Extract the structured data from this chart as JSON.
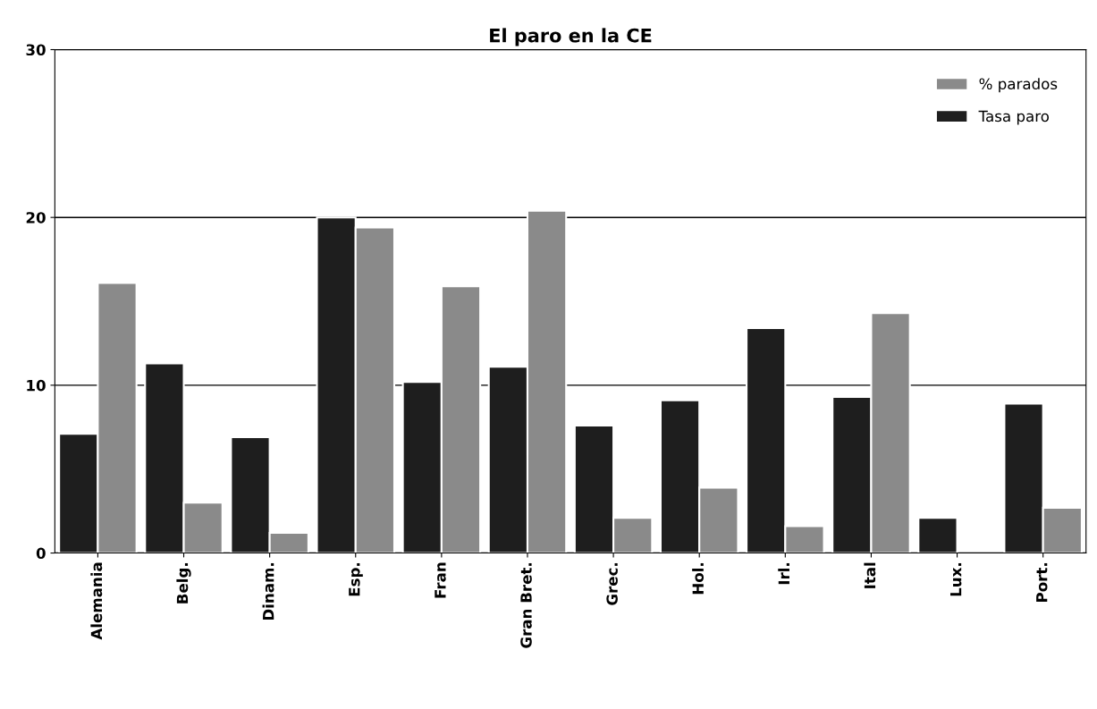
{
  "chart_data": {
    "type": "bar",
    "title": "El paro en la CE",
    "categories": [
      "Alemania",
      "Belg.",
      "Dinam.",
      "Esp.",
      "Fran",
      "Gran Bret.",
      "Grec.",
      "Hol.",
      "Irl.",
      "Ital",
      "Lux.",
      "Port."
    ],
    "series": [
      {
        "name": "Tasa paro",
        "color": "#1e1e1e",
        "values": [
          7.1,
          11.3,
          6.9,
          20.0,
          10.2,
          11.1,
          7.6,
          9.1,
          13.4,
          9.3,
          2.1,
          8.9
        ]
      },
      {
        "name": "% parados",
        "color": "#8a8a8a",
        "values": [
          16.1,
          3.0,
          1.2,
          19.4,
          15.9,
          20.4,
          2.1,
          3.9,
          1.6,
          14.3,
          null,
          2.7
        ]
      }
    ],
    "ylim": [
      0,
      30
    ],
    "yticks": [
      0,
      10,
      20,
      30
    ],
    "grid": "y",
    "legend": "top right"
  }
}
